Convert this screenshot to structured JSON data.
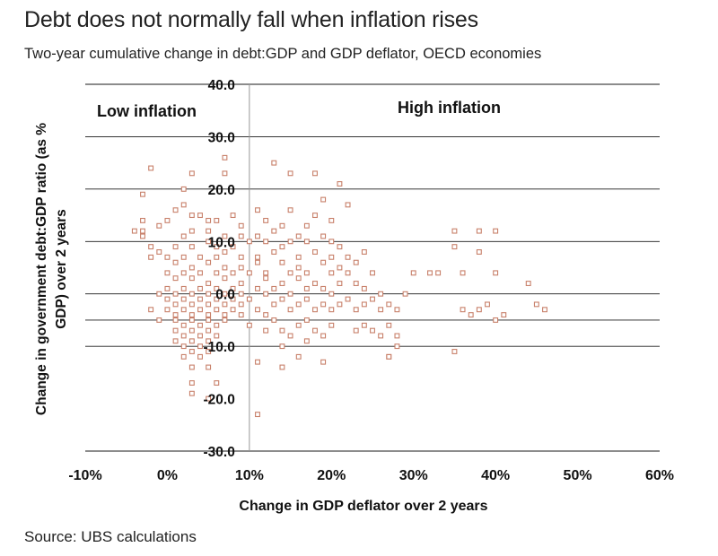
{
  "title": "Debt does not normally fall when inflation rises",
  "subtitle": "Two-year cumulative change in debt:GDP and GDP deflator, OECD economies",
  "source": "Source: UBS calculations",
  "chart_data": {
    "type": "scatter",
    "title": "Debt does not normally fall when inflation rises",
    "xlabel": "Change in GDP deflator over 2 years",
    "ylabel": "Change in government debt:GDP ratio (as % GDP) over 2 years",
    "xlim": [
      -10,
      60
    ],
    "ylim": [
      -30,
      40
    ],
    "x_ticks": [
      "-10%",
      "0%",
      "10%",
      "20%",
      "30%",
      "40%",
      "50%",
      "60%"
    ],
    "y_ticks": [
      "40.0",
      "30.0",
      "20.0",
      "10.0",
      "0.0",
      "-10.0",
      "-20.0",
      "-30.0"
    ],
    "y_gridlines": [
      40,
      30,
      20,
      10,
      0,
      -5,
      -10,
      -30
    ],
    "vertical_divider_x": 10,
    "annotations": [
      "Low inflation",
      "High inflation"
    ],
    "marker_color": "#c8806a",
    "series": [
      {
        "name": "OECD economies",
        "points": [
          [
            -2,
            24
          ],
          [
            -3,
            19
          ],
          [
            2,
            20
          ],
          [
            3,
            23
          ],
          [
            7,
            26
          ],
          [
            7,
            23
          ],
          [
            13,
            25
          ],
          [
            15,
            23
          ],
          [
            18,
            23
          ],
          [
            21,
            21
          ],
          [
            -3,
            14
          ],
          [
            -3,
            12
          ],
          [
            -4,
            12
          ],
          [
            -3,
            11
          ],
          [
            -1,
            13
          ],
          [
            0,
            14
          ],
          [
            1,
            16
          ],
          [
            2,
            17
          ],
          [
            3,
            15
          ],
          [
            4,
            15
          ],
          [
            5,
            14
          ],
          [
            6,
            14
          ],
          [
            8,
            15
          ],
          [
            9,
            13
          ],
          [
            11,
            16
          ],
          [
            12,
            14
          ],
          [
            14,
            13
          ],
          [
            17,
            13
          ],
          [
            18,
            15
          ],
          [
            20,
            14
          ],
          [
            22,
            17
          ],
          [
            19,
            18
          ],
          [
            15,
            16
          ],
          [
            2,
            11
          ],
          [
            3,
            12
          ],
          [
            5,
            12
          ],
          [
            7,
            11
          ],
          [
            9,
            11
          ],
          [
            11,
            11
          ],
          [
            13,
            12
          ],
          [
            16,
            11
          ],
          [
            19,
            11
          ],
          [
            -2,
            9
          ],
          [
            -1,
            8
          ],
          [
            1,
            9
          ],
          [
            3,
            9
          ],
          [
            5,
            10
          ],
          [
            6,
            9
          ],
          [
            8,
            9
          ],
          [
            10,
            10
          ],
          [
            12,
            10
          ],
          [
            14,
            9
          ],
          [
            15,
            10
          ],
          [
            17,
            10
          ],
          [
            20,
            10
          ],
          [
            21,
            9
          ],
          [
            24,
            8
          ],
          [
            -2,
            7
          ],
          [
            0,
            7
          ],
          [
            2,
            7
          ],
          [
            4,
            7
          ],
          [
            6,
            7
          ],
          [
            7,
            8
          ],
          [
            9,
            7
          ],
          [
            11,
            7
          ],
          [
            13,
            8
          ],
          [
            16,
            7
          ],
          [
            18,
            8
          ],
          [
            20,
            7
          ],
          [
            22,
            7
          ],
          [
            1,
            6
          ],
          [
            3,
            5
          ],
          [
            5,
            6
          ],
          [
            7,
            5
          ],
          [
            9,
            5
          ],
          [
            11,
            6
          ],
          [
            14,
            6
          ],
          [
            16,
            5
          ],
          [
            19,
            6
          ],
          [
            21,
            5
          ],
          [
            23,
            6
          ],
          [
            0,
            4
          ],
          [
            2,
            4
          ],
          [
            4,
            4
          ],
          [
            6,
            4
          ],
          [
            8,
            4
          ],
          [
            10,
            4
          ],
          [
            12,
            4
          ],
          [
            15,
            4
          ],
          [
            17,
            4
          ],
          [
            20,
            4
          ],
          [
            22,
            4
          ],
          [
            25,
            4
          ],
          [
            30,
            4
          ],
          [
            32,
            4
          ],
          [
            1,
            3
          ],
          [
            3,
            3
          ],
          [
            5,
            2
          ],
          [
            7,
            3
          ],
          [
            9,
            2
          ],
          [
            12,
            3
          ],
          [
            14,
            2
          ],
          [
            16,
            3
          ],
          [
            18,
            2
          ],
          [
            21,
            2
          ],
          [
            23,
            2
          ],
          [
            0,
            1
          ],
          [
            2,
            1
          ],
          [
            4,
            1
          ],
          [
            6,
            1
          ],
          [
            8,
            1
          ],
          [
            11,
            1
          ],
          [
            13,
            1
          ],
          [
            17,
            1
          ],
          [
            19,
            1
          ],
          [
            24,
            1
          ],
          [
            -1,
            0
          ],
          [
            1,
            0
          ],
          [
            3,
            0
          ],
          [
            5,
            0
          ],
          [
            7,
            0
          ],
          [
            9,
            0
          ],
          [
            12,
            0
          ],
          [
            15,
            0
          ],
          [
            20,
            0
          ],
          [
            26,
            0
          ],
          [
            29,
            0
          ],
          [
            0,
            -1
          ],
          [
            2,
            -1
          ],
          [
            4,
            -1
          ],
          [
            6,
            -1
          ],
          [
            8,
            -1
          ],
          [
            10,
            -1
          ],
          [
            14,
            -1
          ],
          [
            17,
            -1
          ],
          [
            22,
            -1
          ],
          [
            25,
            -1
          ],
          [
            1,
            -2
          ],
          [
            3,
            -2
          ],
          [
            5,
            -2
          ],
          [
            7,
            -2
          ],
          [
            9,
            -2
          ],
          [
            13,
            -2
          ],
          [
            16,
            -2
          ],
          [
            19,
            -2
          ],
          [
            21,
            -2
          ],
          [
            24,
            -2
          ],
          [
            27,
            -2
          ],
          [
            -2,
            -3
          ],
          [
            0,
            -3
          ],
          [
            2,
            -3
          ],
          [
            4,
            -3
          ],
          [
            6,
            -3
          ],
          [
            8,
            -3
          ],
          [
            11,
            -3
          ],
          [
            15,
            -3
          ],
          [
            18,
            -3
          ],
          [
            20,
            -3
          ],
          [
            23,
            -3
          ],
          [
            26,
            -3
          ],
          [
            28,
            -3
          ],
          [
            1,
            -4
          ],
          [
            3,
            -4
          ],
          [
            5,
            -4
          ],
          [
            7,
            -4
          ],
          [
            9,
            -4
          ],
          [
            12,
            -4
          ],
          [
            -1,
            -5
          ],
          [
            1,
            -5
          ],
          [
            3,
            -5
          ],
          [
            5,
            -5
          ],
          [
            7,
            -5
          ],
          [
            13,
            -5
          ],
          [
            17,
            -5
          ],
          [
            2,
            -6
          ],
          [
            4,
            -6
          ],
          [
            6,
            -6
          ],
          [
            10,
            -6
          ],
          [
            16,
            -6
          ],
          [
            20,
            -6
          ],
          [
            24,
            -6
          ],
          [
            27,
            -6
          ],
          [
            1,
            -7
          ],
          [
            3,
            -7
          ],
          [
            5,
            -7
          ],
          [
            12,
            -7
          ],
          [
            14,
            -7
          ],
          [
            18,
            -7
          ],
          [
            23,
            -7
          ],
          [
            25,
            -7
          ],
          [
            2,
            -8
          ],
          [
            4,
            -8
          ],
          [
            6,
            -8
          ],
          [
            15,
            -8
          ],
          [
            19,
            -8
          ],
          [
            26,
            -8
          ],
          [
            28,
            -8
          ],
          [
            1,
            -9
          ],
          [
            3,
            -9
          ],
          [
            5,
            -9
          ],
          [
            17,
            -9
          ],
          [
            2,
            -10
          ],
          [
            4,
            -10
          ],
          [
            14,
            -10
          ],
          [
            3,
            -11
          ],
          [
            5,
            -11
          ],
          [
            2,
            -12
          ],
          [
            4,
            -12
          ],
          [
            16,
            -12
          ],
          [
            11,
            -13
          ],
          [
            19,
            -13
          ],
          [
            27,
            -12
          ],
          [
            3,
            -14
          ],
          [
            5,
            -14
          ],
          [
            14,
            -14
          ],
          [
            6,
            -17
          ],
          [
            3,
            -17
          ],
          [
            3,
            -19
          ],
          [
            5,
            -20
          ],
          [
            11,
            -23
          ],
          [
            35,
            12
          ],
          [
            38,
            12
          ],
          [
            40,
            12
          ],
          [
            35,
            9
          ],
          [
            38,
            8
          ],
          [
            36,
            4
          ],
          [
            40,
            4
          ],
          [
            44,
            2
          ],
          [
            45,
            -2
          ],
          [
            46,
            -3
          ],
          [
            36,
            -3
          ],
          [
            37,
            -4
          ],
          [
            38,
            -3
          ],
          [
            39,
            -2
          ],
          [
            41,
            -4
          ],
          [
            40,
            -5
          ],
          [
            35,
            -11
          ],
          [
            28,
            -10
          ],
          [
            27,
            -12
          ],
          [
            33,
            4
          ]
        ]
      }
    ]
  }
}
